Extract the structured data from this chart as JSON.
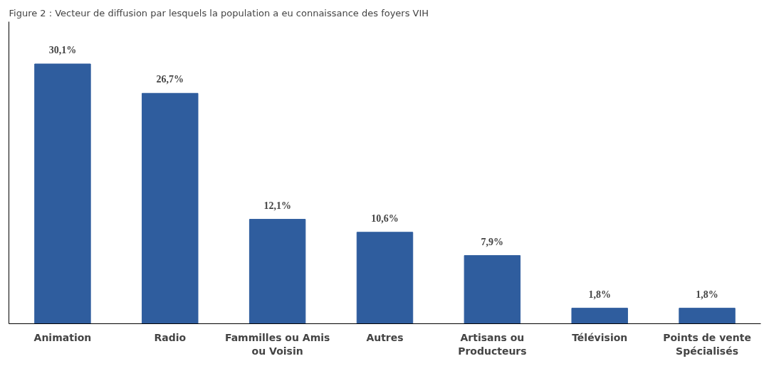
{
  "chart_data": {
    "type": "bar",
    "title": "Figure 2 : Vecteur de diffusion par lesquels la population a eu connaissance des foyers VIH",
    "categories": [
      "Animation",
      "Radio",
      "Fammilles ou Amis ou Voisin",
      "Autres",
      "Artisans ou Producteurs",
      "Télévision",
      "Points de vente Spécialisés"
    ],
    "values": [
      30.1,
      26.7,
      12.1,
      10.6,
      7.9,
      1.8,
      1.8
    ],
    "value_labels": [
      "30,1%",
      "26,7%",
      "12,1%",
      "10,6%",
      "7,9%",
      "1,8%",
      "1,8%"
    ],
    "color": "#2f5d9e",
    "ylim": [
      0,
      35
    ],
    "grid": false
  }
}
